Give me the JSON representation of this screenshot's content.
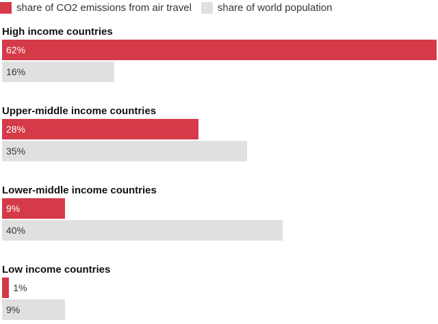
{
  "chart_data": {
    "type": "bar",
    "orientation": "horizontal",
    "categories": [
      "High income countries",
      "Upper-middle income countries",
      "Lower-middle income countries",
      "Low income countries"
    ],
    "series": [
      {
        "name": "share of CO2 emissions from air travel",
        "values": [
          62,
          28,
          9,
          1
        ],
        "labels": [
          "62%",
          "28%",
          "9%",
          "1%"
        ]
      },
      {
        "name": "share of world population",
        "values": [
          16,
          35,
          40,
          9
        ],
        "labels": [
          "16%",
          "35%",
          "40%",
          "9%"
        ]
      }
    ],
    "legend_position": "top-left",
    "grid": false
  },
  "colors": {
    "emissions": "#d43a47",
    "population": "#e0e0e0",
    "label_on_red": "#ffffff",
    "label_dark": "#333333"
  }
}
